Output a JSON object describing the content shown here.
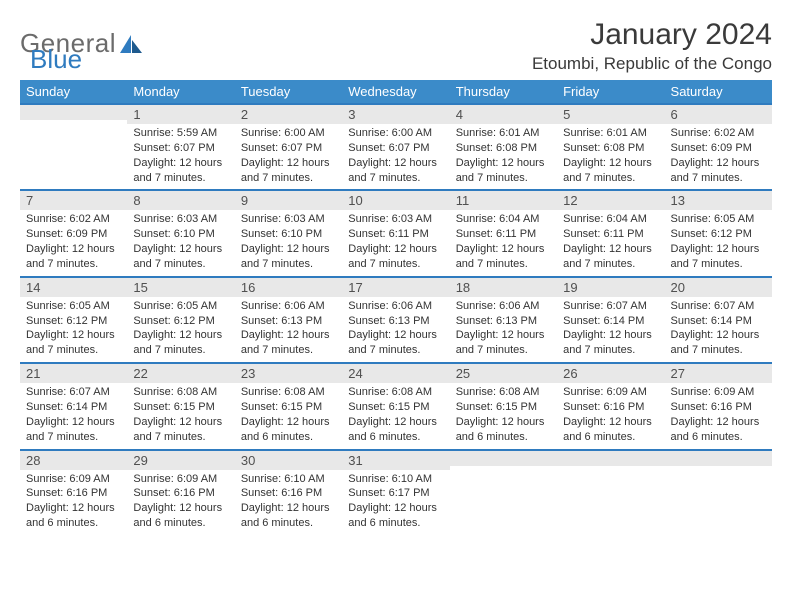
{
  "brand": {
    "part1": "General",
    "part2": "Blue"
  },
  "title": "January 2024",
  "location": "Etoumbi, Republic of the Congo",
  "colors": {
    "header_bg": "#3b8bc9",
    "header_text": "#ffffff",
    "daynum_bg": "#e8e8e8",
    "rule": "#2f7bbf",
    "body_text": "#333333",
    "title_text": "#3a3a3a",
    "logo_gray": "#6b6b6b",
    "logo_blue": "#2f7bbf",
    "page_bg": "#ffffff"
  },
  "fonts": {
    "title_pt": 30,
    "location_pt": 17,
    "header_pt": 13,
    "daynum_pt": 13,
    "body_pt": 11,
    "logo_pt": 26
  },
  "weekdays": [
    "Sunday",
    "Monday",
    "Tuesday",
    "Wednesday",
    "Thursday",
    "Friday",
    "Saturday"
  ],
  "weeks": [
    [
      {
        "num": "",
        "lines": []
      },
      {
        "num": "1",
        "lines": [
          "Sunrise: 5:59 AM",
          "Sunset: 6:07 PM",
          "Daylight: 12 hours and 7 minutes."
        ]
      },
      {
        "num": "2",
        "lines": [
          "Sunrise: 6:00 AM",
          "Sunset: 6:07 PM",
          "Daylight: 12 hours and 7 minutes."
        ]
      },
      {
        "num": "3",
        "lines": [
          "Sunrise: 6:00 AM",
          "Sunset: 6:07 PM",
          "Daylight: 12 hours and 7 minutes."
        ]
      },
      {
        "num": "4",
        "lines": [
          "Sunrise: 6:01 AM",
          "Sunset: 6:08 PM",
          "Daylight: 12 hours and 7 minutes."
        ]
      },
      {
        "num": "5",
        "lines": [
          "Sunrise: 6:01 AM",
          "Sunset: 6:08 PM",
          "Daylight: 12 hours and 7 minutes."
        ]
      },
      {
        "num": "6",
        "lines": [
          "Sunrise: 6:02 AM",
          "Sunset: 6:09 PM",
          "Daylight: 12 hours and 7 minutes."
        ]
      }
    ],
    [
      {
        "num": "7",
        "lines": [
          "Sunrise: 6:02 AM",
          "Sunset: 6:09 PM",
          "Daylight: 12 hours and 7 minutes."
        ]
      },
      {
        "num": "8",
        "lines": [
          "Sunrise: 6:03 AM",
          "Sunset: 6:10 PM",
          "Daylight: 12 hours and 7 minutes."
        ]
      },
      {
        "num": "9",
        "lines": [
          "Sunrise: 6:03 AM",
          "Sunset: 6:10 PM",
          "Daylight: 12 hours and 7 minutes."
        ]
      },
      {
        "num": "10",
        "lines": [
          "Sunrise: 6:03 AM",
          "Sunset: 6:11 PM",
          "Daylight: 12 hours and 7 minutes."
        ]
      },
      {
        "num": "11",
        "lines": [
          "Sunrise: 6:04 AM",
          "Sunset: 6:11 PM",
          "Daylight: 12 hours and 7 minutes."
        ]
      },
      {
        "num": "12",
        "lines": [
          "Sunrise: 6:04 AM",
          "Sunset: 6:11 PM",
          "Daylight: 12 hours and 7 minutes."
        ]
      },
      {
        "num": "13",
        "lines": [
          "Sunrise: 6:05 AM",
          "Sunset: 6:12 PM",
          "Daylight: 12 hours and 7 minutes."
        ]
      }
    ],
    [
      {
        "num": "14",
        "lines": [
          "Sunrise: 6:05 AM",
          "Sunset: 6:12 PM",
          "Daylight: 12 hours and 7 minutes."
        ]
      },
      {
        "num": "15",
        "lines": [
          "Sunrise: 6:05 AM",
          "Sunset: 6:12 PM",
          "Daylight: 12 hours and 7 minutes."
        ]
      },
      {
        "num": "16",
        "lines": [
          "Sunrise: 6:06 AM",
          "Sunset: 6:13 PM",
          "Daylight: 12 hours and 7 minutes."
        ]
      },
      {
        "num": "17",
        "lines": [
          "Sunrise: 6:06 AM",
          "Sunset: 6:13 PM",
          "Daylight: 12 hours and 7 minutes."
        ]
      },
      {
        "num": "18",
        "lines": [
          "Sunrise: 6:06 AM",
          "Sunset: 6:13 PM",
          "Daylight: 12 hours and 7 minutes."
        ]
      },
      {
        "num": "19",
        "lines": [
          "Sunrise: 6:07 AM",
          "Sunset: 6:14 PM",
          "Daylight: 12 hours and 7 minutes."
        ]
      },
      {
        "num": "20",
        "lines": [
          "Sunrise: 6:07 AM",
          "Sunset: 6:14 PM",
          "Daylight: 12 hours and 7 minutes."
        ]
      }
    ],
    [
      {
        "num": "21",
        "lines": [
          "Sunrise: 6:07 AM",
          "Sunset: 6:14 PM",
          "Daylight: 12 hours and 7 minutes."
        ]
      },
      {
        "num": "22",
        "lines": [
          "Sunrise: 6:08 AM",
          "Sunset: 6:15 PM",
          "Daylight: 12 hours and 7 minutes."
        ]
      },
      {
        "num": "23",
        "lines": [
          "Sunrise: 6:08 AM",
          "Sunset: 6:15 PM",
          "Daylight: 12 hours and 6 minutes."
        ]
      },
      {
        "num": "24",
        "lines": [
          "Sunrise: 6:08 AM",
          "Sunset: 6:15 PM",
          "Daylight: 12 hours and 6 minutes."
        ]
      },
      {
        "num": "25",
        "lines": [
          "Sunrise: 6:08 AM",
          "Sunset: 6:15 PM",
          "Daylight: 12 hours and 6 minutes."
        ]
      },
      {
        "num": "26",
        "lines": [
          "Sunrise: 6:09 AM",
          "Sunset: 6:16 PM",
          "Daylight: 12 hours and 6 minutes."
        ]
      },
      {
        "num": "27",
        "lines": [
          "Sunrise: 6:09 AM",
          "Sunset: 6:16 PM",
          "Daylight: 12 hours and 6 minutes."
        ]
      }
    ],
    [
      {
        "num": "28",
        "lines": [
          "Sunrise: 6:09 AM",
          "Sunset: 6:16 PM",
          "Daylight: 12 hours and 6 minutes."
        ]
      },
      {
        "num": "29",
        "lines": [
          "Sunrise: 6:09 AM",
          "Sunset: 6:16 PM",
          "Daylight: 12 hours and 6 minutes."
        ]
      },
      {
        "num": "30",
        "lines": [
          "Sunrise: 6:10 AM",
          "Sunset: 6:16 PM",
          "Daylight: 12 hours and 6 minutes."
        ]
      },
      {
        "num": "31",
        "lines": [
          "Sunrise: 6:10 AM",
          "Sunset: 6:17 PM",
          "Daylight: 12 hours and 6 minutes."
        ]
      },
      {
        "num": "",
        "lines": []
      },
      {
        "num": "",
        "lines": []
      },
      {
        "num": "",
        "lines": []
      }
    ]
  ]
}
